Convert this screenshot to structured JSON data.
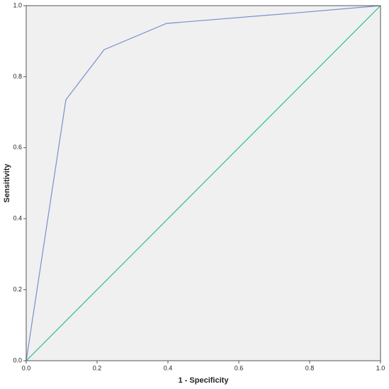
{
  "chart_data": {
    "type": "line",
    "x_label": "1 - Specificity",
    "y_label": "Sensitivity",
    "series": [
      {
        "color": "#7b8fcc",
        "x": [
          0,
          0.112,
          0.22,
          0.396,
          0.766,
          1
        ],
        "values": [
          0,
          0.735,
          0.876,
          0.95,
          0.98,
          1
        ]
      },
      {
        "color": "#2ec08e",
        "x": [
          0,
          1
        ],
        "values": [
          0,
          1
        ]
      }
    ],
    "xlim": [
      0,
      1
    ],
    "ylim": [
      0,
      1
    ],
    "xticks": [
      {
        "value": 0,
        "label": "0.0"
      },
      0.2,
      0.4,
      0.6,
      0.8,
      {
        "value": 1,
        "label": "1.0"
      }
    ],
    "yticks": [
      {
        "value": 0,
        "label": "0.0"
      },
      0.2,
      0.4,
      0.6,
      0.8,
      {
        "value": 1,
        "label": "1.0"
      }
    ],
    "grid": false,
    "background": "#f0f0f0"
  }
}
